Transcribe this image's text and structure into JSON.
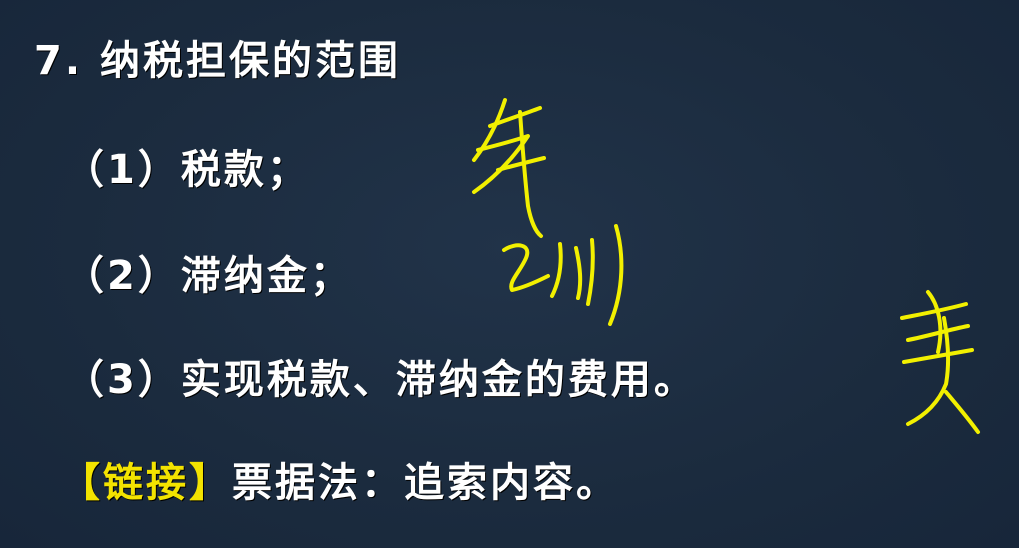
{
  "slide": {
    "title": "7. 纳税担保的范围",
    "items": [
      "（1）税款；",
      "（2）滞纳金；",
      "（3）实现税款、滞纳金的费用。"
    ],
    "link": {
      "tag": "【链接】",
      "text": "票据法：追索内容。"
    },
    "annotation_color": "#f2f000",
    "highlight_color": "#f3e300"
  }
}
